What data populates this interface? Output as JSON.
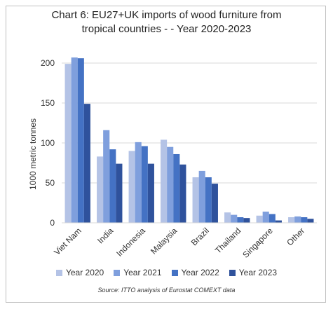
{
  "chart_data": {
    "type": "bar",
    "title": "Chart 6: EU27+UK imports of wood furniture from\ntropical countries - - Year 2020-2023",
    "ylabel": "1000 metric tonnes",
    "xlabel": "",
    "ylim": [
      0,
      200
    ],
    "yticks": [
      "0",
      "50",
      "100",
      "150",
      "200"
    ],
    "grid": true,
    "legend_position": "bottom",
    "categories": [
      "Viet Nam",
      "India",
      "Indonesia",
      "Malaysia",
      "Brazil",
      "Thailand",
      "Singapore",
      "Other"
    ],
    "series": [
      {
        "name": "Year 2020",
        "color": "#b4c3e6",
        "values": [
          199,
          83,
          90,
          104,
          57,
          13,
          9,
          7
        ]
      },
      {
        "name": "Year 2021",
        "color": "#7f9fdd",
        "values": [
          207,
          116,
          101,
          95,
          65,
          10,
          14,
          8
        ]
      },
      {
        "name": "Year 2022",
        "color": "#4472c4",
        "values": [
          206,
          92,
          96,
          86,
          57,
          7,
          11,
          7
        ]
      },
      {
        "name": "Year 2023",
        "color": "#2f529c",
        "values": [
          149,
          74,
          74,
          73,
          49,
          6,
          3,
          5
        ]
      }
    ],
    "source": "Source: ITTO analysis of Eurostat COMEXT data"
  }
}
